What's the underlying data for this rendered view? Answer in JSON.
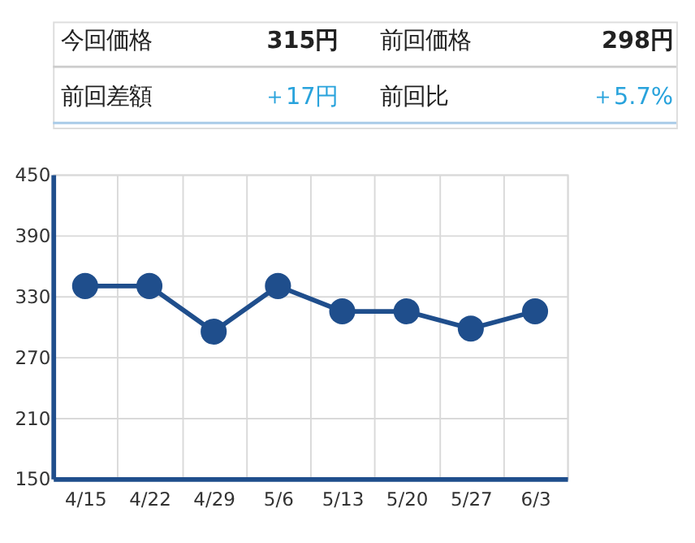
{
  "chart_data": {
    "type": "line",
    "annotations": [
      "今回価格",
      "315円",
      "前回価格",
      "298円",
      "前回差額",
      "＋17円",
      "前回比",
      "＋5.7%"
    ],
    "categories": [
      "4/15",
      "4/22",
      "4/29",
      "5/6",
      "5/13",
      "5/20",
      "5/27",
      "6/3"
    ],
    "series": [
      {
        "color": "#1f4e8c",
        "values": [
          340,
          340,
          295,
          340,
          315,
          315,
          298,
          315
        ]
      }
    ],
    "ylim": [
      150,
      450
    ],
    "yticks": [
      150,
      210,
      270,
      330,
      390,
      450
    ],
    "grid": true,
    "marker": "circle",
    "line_style": "solid"
  }
}
